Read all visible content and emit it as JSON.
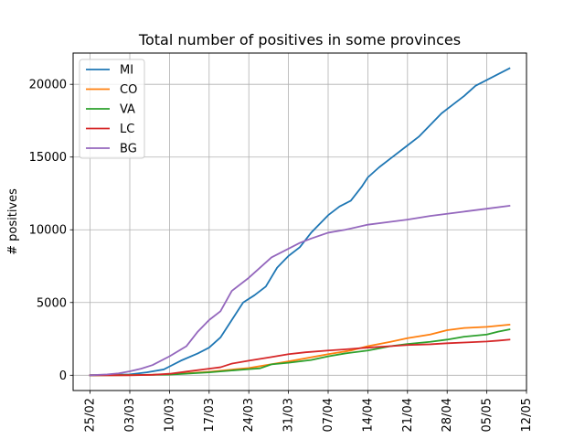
{
  "chart_data": {
    "type": "line",
    "title": "Total number of positives in some provinces",
    "xlabel": "",
    "ylabel": "# positives",
    "x_axis": {
      "type": "date",
      "start": "2020-02-25",
      "end": "2020-05-09",
      "xlim": [
        "2020-02-22",
        "2020-05-12"
      ],
      "tick_dates": [
        "2020-02-25",
        "2020-03-03",
        "2020-03-10",
        "2020-03-17",
        "2020-03-24",
        "2020-03-31",
        "2020-04-07",
        "2020-04-14",
        "2020-04-21",
        "2020-04-28",
        "2020-05-05",
        "2020-05-12"
      ],
      "tick_labels": [
        "25/02",
        "03/03",
        "10/03",
        "17/03",
        "24/03",
        "31/03",
        "07/04",
        "14/04",
        "21/04",
        "28/04",
        "05/05",
        "12/05"
      ]
    },
    "ylim": [
      -1050,
      22150
    ],
    "yticks": [
      0,
      5000,
      10000,
      15000,
      20000
    ],
    "ytick_labels": [
      "0",
      "5000",
      "10000",
      "15000",
      "20000"
    ],
    "grid": true,
    "legend_position": "upper-left",
    "series": [
      {
        "name": "MI",
        "color": "#1f77b4",
        "points": [
          [
            "2020-02-25",
            0
          ],
          [
            "2020-03-03",
            60
          ],
          [
            "2020-03-06",
            200
          ],
          [
            "2020-03-09",
            400
          ],
          [
            "2020-03-10",
            600
          ],
          [
            "2020-03-12",
            1000
          ],
          [
            "2020-03-15",
            1500
          ],
          [
            "2020-03-17",
            1900
          ],
          [
            "2020-03-19",
            2600
          ],
          [
            "2020-03-21",
            3800
          ],
          [
            "2020-03-23",
            5000
          ],
          [
            "2020-03-25",
            5500
          ],
          [
            "2020-03-27",
            6100
          ],
          [
            "2020-03-29",
            7400
          ],
          [
            "2020-03-31",
            8200
          ],
          [
            "2020-04-02",
            8800
          ],
          [
            "2020-04-04",
            9800
          ],
          [
            "2020-04-07",
            11000
          ],
          [
            "2020-04-09",
            11600
          ],
          [
            "2020-04-11",
            12000
          ],
          [
            "2020-04-13",
            13000
          ],
          [
            "2020-04-14",
            13600
          ],
          [
            "2020-04-16",
            14300
          ],
          [
            "2020-04-18",
            14900
          ],
          [
            "2020-04-21",
            15800
          ],
          [
            "2020-04-23",
            16400
          ],
          [
            "2020-04-25",
            17200
          ],
          [
            "2020-04-27",
            18000
          ],
          [
            "2020-04-29",
            18600
          ],
          [
            "2020-05-01",
            19200
          ],
          [
            "2020-05-03",
            19900
          ],
          [
            "2020-05-05",
            20300
          ],
          [
            "2020-05-07",
            20700
          ],
          [
            "2020-05-09",
            21100
          ]
        ]
      },
      {
        "name": "CO",
        "color": "#ff7f0e",
        "points": [
          [
            "2020-02-25",
            0
          ],
          [
            "2020-03-03",
            10
          ],
          [
            "2020-03-10",
            60
          ],
          [
            "2020-03-17",
            240
          ],
          [
            "2020-03-24",
            500
          ],
          [
            "2020-03-31",
            950
          ],
          [
            "2020-04-07",
            1450
          ],
          [
            "2020-04-11",
            1700
          ],
          [
            "2020-04-14",
            2000
          ],
          [
            "2020-04-18",
            2300
          ],
          [
            "2020-04-21",
            2550
          ],
          [
            "2020-04-25",
            2800
          ],
          [
            "2020-04-28",
            3100
          ],
          [
            "2020-05-01",
            3250
          ],
          [
            "2020-05-05",
            3330
          ],
          [
            "2020-05-09",
            3480
          ]
        ]
      },
      {
        "name": "VA",
        "color": "#2ca02c",
        "points": [
          [
            "2020-02-25",
            0
          ],
          [
            "2020-03-03",
            10
          ],
          [
            "2020-03-10",
            40
          ],
          [
            "2020-03-17",
            200
          ],
          [
            "2020-03-24",
            420
          ],
          [
            "2020-03-26",
            480
          ],
          [
            "2020-03-28",
            750
          ],
          [
            "2020-03-31",
            860
          ],
          [
            "2020-04-04",
            1050
          ],
          [
            "2020-04-07",
            1300
          ],
          [
            "2020-04-10",
            1500
          ],
          [
            "2020-04-14",
            1700
          ],
          [
            "2020-04-18",
            2000
          ],
          [
            "2020-04-21",
            2150
          ],
          [
            "2020-04-25",
            2300
          ],
          [
            "2020-04-28",
            2450
          ],
          [
            "2020-05-01",
            2650
          ],
          [
            "2020-05-05",
            2800
          ],
          [
            "2020-05-07",
            3000
          ],
          [
            "2020-05-09",
            3150
          ]
        ]
      },
      {
        "name": "LC",
        "color": "#d62728",
        "points": [
          [
            "2020-02-25",
            0
          ],
          [
            "2020-03-03",
            0
          ],
          [
            "2020-03-07",
            30
          ],
          [
            "2020-03-10",
            100
          ],
          [
            "2020-03-13",
            250
          ],
          [
            "2020-03-17",
            450
          ],
          [
            "2020-03-19",
            550
          ],
          [
            "2020-03-21",
            800
          ],
          [
            "2020-03-24",
            1000
          ],
          [
            "2020-03-28",
            1250
          ],
          [
            "2020-03-31",
            1450
          ],
          [
            "2020-04-03",
            1580
          ],
          [
            "2020-04-07",
            1700
          ],
          [
            "2020-04-10",
            1780
          ],
          [
            "2020-04-14",
            1900
          ],
          [
            "2020-04-18",
            2000
          ],
          [
            "2020-04-21",
            2080
          ],
          [
            "2020-04-25",
            2130
          ],
          [
            "2020-04-28",
            2200
          ],
          [
            "2020-05-01",
            2250
          ],
          [
            "2020-05-05",
            2320
          ],
          [
            "2020-05-07",
            2380
          ],
          [
            "2020-05-09",
            2450
          ]
        ]
      },
      {
        "name": "BG",
        "color": "#9467bd",
        "points": [
          [
            "2020-02-25",
            0
          ],
          [
            "2020-02-28",
            60
          ],
          [
            "2020-03-01",
            130
          ],
          [
            "2020-03-03",
            270
          ],
          [
            "2020-03-05",
            450
          ],
          [
            "2020-03-07",
            700
          ],
          [
            "2020-03-10",
            1300
          ],
          [
            "2020-03-13",
            2000
          ],
          [
            "2020-03-15",
            3000
          ],
          [
            "2020-03-17",
            3800
          ],
          [
            "2020-03-19",
            4400
          ],
          [
            "2020-03-21",
            5800
          ],
          [
            "2020-03-24",
            6700
          ],
          [
            "2020-03-26",
            7400
          ],
          [
            "2020-03-28",
            8100
          ],
          [
            "2020-03-31",
            8700
          ],
          [
            "2020-04-02",
            9100
          ],
          [
            "2020-04-04",
            9400
          ],
          [
            "2020-04-07",
            9800
          ],
          [
            "2020-04-10",
            10000
          ],
          [
            "2020-04-14",
            10350
          ],
          [
            "2020-04-18",
            10550
          ],
          [
            "2020-04-21",
            10700
          ],
          [
            "2020-04-25",
            10950
          ],
          [
            "2020-04-28",
            11100
          ],
          [
            "2020-05-01",
            11250
          ],
          [
            "2020-05-05",
            11450
          ],
          [
            "2020-05-09",
            11650
          ]
        ]
      }
    ]
  }
}
